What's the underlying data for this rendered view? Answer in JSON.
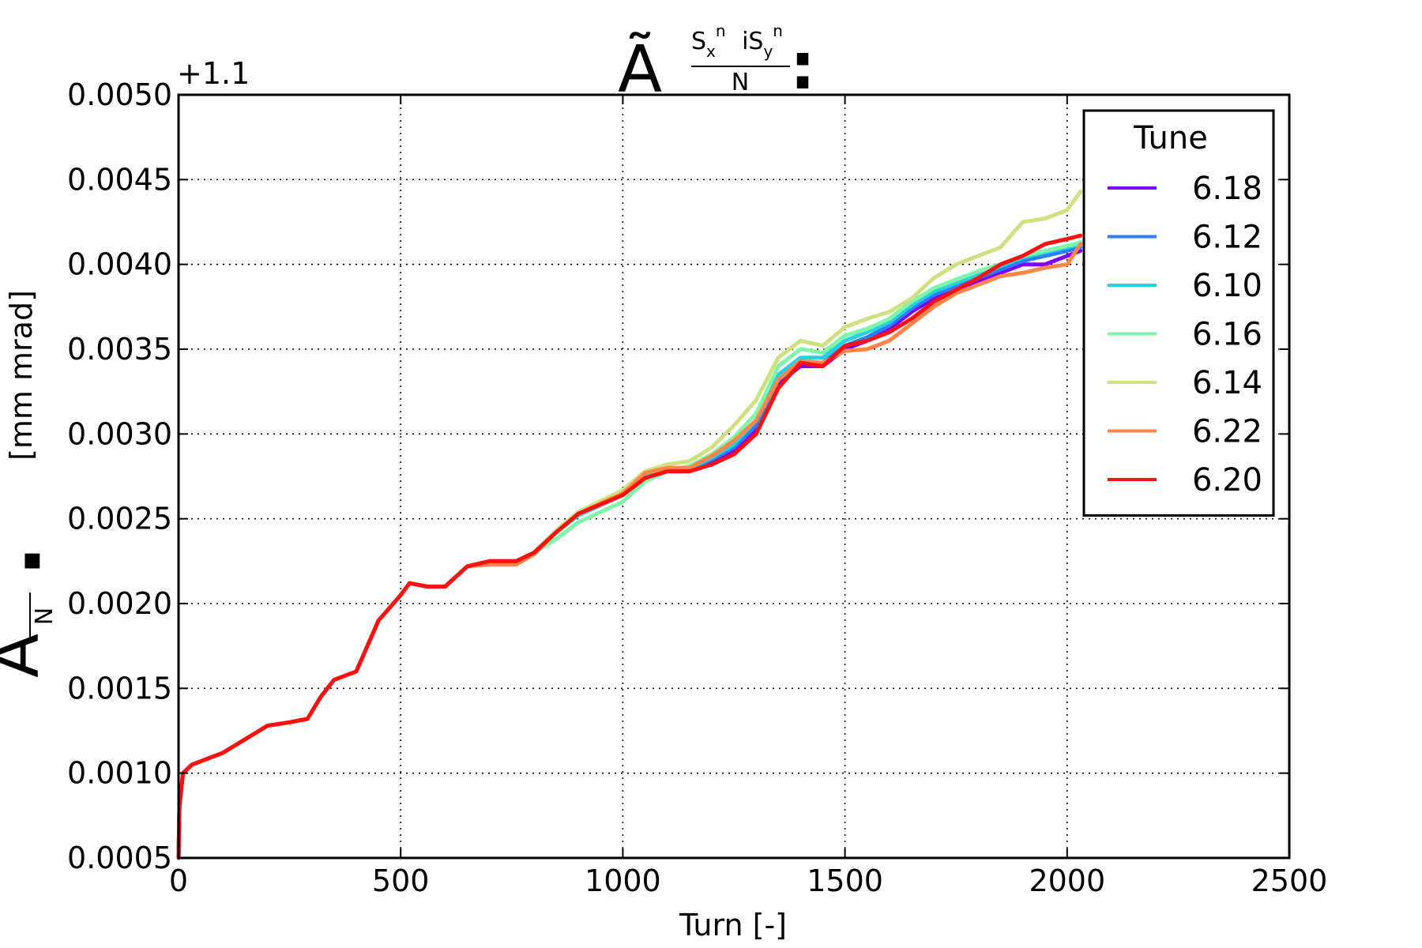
{
  "chart_data": {
    "type": "line",
    "title": {
      "symbol": "Ã",
      "numerator_parts": [
        {
          "text": "S",
          "sub": "x",
          "sup": "n"
        },
        {
          "text": "  iS",
          "sub": "y",
          "sup": "n"
        }
      ],
      "denominator": "N",
      "suffix": ":"
    },
    "ylabel": {
      "symbol": "Ã",
      "fraction_denominator": "N",
      "units": "[mm mrad]"
    },
    "xlabel": "Turn [-]",
    "y_offset_label": "+1.1",
    "xlim": [
      0,
      2500
    ],
    "ylim": [
      0.0005,
      0.005
    ],
    "x_ticks": [
      0,
      500,
      1000,
      1500,
      2000,
      2500
    ],
    "x_tick_labels": [
      "0",
      "500",
      "1000",
      "1500",
      "2000",
      "2500"
    ],
    "y_ticks": [
      0.0005,
      0.001,
      0.0015,
      0.002,
      0.0025,
      0.003,
      0.0035,
      0.004,
      0.0045,
      0.005
    ],
    "y_tick_labels": [
      "0.0005",
      "0.0010",
      "0.0015",
      "0.0020",
      "0.0025",
      "0.0030",
      "0.0035",
      "0.0040",
      "0.0045",
      "0.0050"
    ],
    "grid": true,
    "legend": {
      "title": "Tune",
      "placement": "top-right"
    },
    "series": [
      {
        "name": "6.18",
        "color": "#8000ff",
        "x": [
          0,
          2,
          10,
          30,
          100,
          150,
          200,
          250,
          290,
          320,
          350,
          400,
          450,
          500,
          520,
          560,
          600,
          650,
          700,
          760,
          800,
          850,
          900,
          1000,
          1050,
          1100,
          1150,
          1200,
          1250,
          1300,
          1350,
          1400,
          1450,
          1500,
          1550,
          1600,
          1650,
          1700,
          1750,
          1800,
          1850,
          1900,
          1950,
          2000,
          2030
        ],
        "y": [
          0.0005,
          0.0008,
          0.001,
          0.00105,
          0.00112,
          0.0012,
          0.00128,
          0.0013,
          0.00132,
          0.00145,
          0.00155,
          0.0016,
          0.0019,
          0.00205,
          0.00212,
          0.0021,
          0.0021,
          0.00222,
          0.00225,
          0.00225,
          0.0023,
          0.00242,
          0.00253,
          0.00265,
          0.00275,
          0.00278,
          0.00278,
          0.00283,
          0.0029,
          0.00302,
          0.0033,
          0.0034,
          0.0034,
          0.0035,
          0.00355,
          0.00362,
          0.00372,
          0.0038,
          0.00385,
          0.0039,
          0.00395,
          0.004,
          0.004,
          0.00405,
          0.00408
        ]
      },
      {
        "name": "6.12",
        "color": "#2c7ef7",
        "x": [
          0,
          2,
          10,
          30,
          100,
          150,
          200,
          250,
          290,
          320,
          350,
          400,
          450,
          500,
          520,
          560,
          600,
          650,
          700,
          760,
          800,
          850,
          900,
          1000,
          1050,
          1100,
          1150,
          1200,
          1250,
          1300,
          1350,
          1400,
          1450,
          1500,
          1550,
          1600,
          1650,
          1700,
          1750,
          1800,
          1850,
          1900,
          1950,
          2000,
          2030
        ],
        "y": [
          0.0005,
          0.0008,
          0.001,
          0.00105,
          0.00112,
          0.0012,
          0.00128,
          0.0013,
          0.00132,
          0.00145,
          0.00155,
          0.0016,
          0.0019,
          0.00205,
          0.00212,
          0.0021,
          0.0021,
          0.00222,
          0.00225,
          0.00225,
          0.0023,
          0.00243,
          0.00254,
          0.00266,
          0.00276,
          0.00279,
          0.00279,
          0.00285,
          0.00292,
          0.00305,
          0.00332,
          0.00342,
          0.00342,
          0.00352,
          0.00357,
          0.00364,
          0.00374,
          0.00382,
          0.00387,
          0.00392,
          0.00397,
          0.00402,
          0.00405,
          0.00408,
          0.0041
        ]
      },
      {
        "name": "6.10",
        "color": "#25d0e0",
        "x": [
          0,
          2,
          10,
          30,
          100,
          150,
          200,
          250,
          290,
          320,
          350,
          400,
          450,
          500,
          520,
          560,
          600,
          650,
          700,
          760,
          800,
          850,
          900,
          1000,
          1050,
          1100,
          1150,
          1200,
          1250,
          1300,
          1350,
          1400,
          1450,
          1500,
          1550,
          1600,
          1650,
          1700,
          1750,
          1800,
          1850,
          1900,
          1950,
          2000,
          2030
        ],
        "y": [
          0.0005,
          0.0008,
          0.001,
          0.00105,
          0.00112,
          0.0012,
          0.00128,
          0.0013,
          0.00132,
          0.00145,
          0.00155,
          0.0016,
          0.0019,
          0.00205,
          0.00212,
          0.0021,
          0.0021,
          0.00222,
          0.00225,
          0.00225,
          0.0023,
          0.00242,
          0.00252,
          0.00264,
          0.00275,
          0.00279,
          0.0028,
          0.00286,
          0.00294,
          0.00308,
          0.00335,
          0.00345,
          0.00345,
          0.00355,
          0.0036,
          0.00366,
          0.00376,
          0.00384,
          0.00389,
          0.00394,
          0.00399,
          0.00404,
          0.00407,
          0.0041,
          0.00412
        ]
      },
      {
        "name": "6.16",
        "color": "#7ff5a8",
        "x": [
          0,
          2,
          10,
          30,
          100,
          150,
          200,
          250,
          290,
          320,
          350,
          400,
          450,
          500,
          520,
          560,
          600,
          650,
          700,
          760,
          800,
          850,
          900,
          1000,
          1050,
          1100,
          1150,
          1200,
          1250,
          1300,
          1350,
          1400,
          1450,
          1500,
          1550,
          1600,
          1650,
          1700,
          1750,
          1800,
          1850,
          1900,
          1950,
          2000,
          2030
        ],
        "y": [
          0.0005,
          0.0008,
          0.001,
          0.00105,
          0.00112,
          0.0012,
          0.00128,
          0.0013,
          0.00132,
          0.00145,
          0.00155,
          0.0016,
          0.0019,
          0.00205,
          0.00212,
          0.0021,
          0.0021,
          0.00222,
          0.00225,
          0.00225,
          0.0023,
          0.00238,
          0.00248,
          0.0026,
          0.00272,
          0.00278,
          0.00281,
          0.00288,
          0.00298,
          0.00312,
          0.0034,
          0.0035,
          0.00348,
          0.00358,
          0.00362,
          0.00368,
          0.00378,
          0.00386,
          0.00391,
          0.00396,
          0.004,
          0.00405,
          0.00408,
          0.00411,
          0.00413
        ]
      },
      {
        "name": "6.14",
        "color": "#cfe07f",
        "x": [
          0,
          2,
          10,
          30,
          100,
          150,
          200,
          250,
          290,
          320,
          350,
          400,
          450,
          500,
          520,
          560,
          600,
          650,
          700,
          760,
          800,
          850,
          900,
          1000,
          1050,
          1100,
          1150,
          1200,
          1250,
          1300,
          1350,
          1400,
          1450,
          1500,
          1550,
          1600,
          1650,
          1700,
          1750,
          1800,
          1850,
          1900,
          1950,
          2000,
          2030
        ],
        "y": [
          0.0005,
          0.0008,
          0.001,
          0.00105,
          0.00112,
          0.0012,
          0.00128,
          0.0013,
          0.00132,
          0.00145,
          0.00155,
          0.0016,
          0.0019,
          0.00205,
          0.00212,
          0.0021,
          0.0021,
          0.00222,
          0.00225,
          0.00225,
          0.0023,
          0.00243,
          0.00254,
          0.00267,
          0.00278,
          0.00282,
          0.00284,
          0.00292,
          0.00305,
          0.0032,
          0.00345,
          0.00355,
          0.00352,
          0.00363,
          0.00368,
          0.00372,
          0.0038,
          0.00392,
          0.004,
          0.00405,
          0.0041,
          0.00425,
          0.00427,
          0.00432,
          0.00443
        ]
      },
      {
        "name": "6.22",
        "color": "#ff8447",
        "x": [
          0,
          2,
          10,
          30,
          100,
          150,
          200,
          250,
          290,
          320,
          350,
          400,
          450,
          500,
          520,
          560,
          600,
          650,
          700,
          760,
          800,
          850,
          900,
          1000,
          1050,
          1100,
          1150,
          1200,
          1250,
          1300,
          1350,
          1400,
          1450,
          1500,
          1550,
          1600,
          1650,
          1700,
          1750,
          1800,
          1850,
          1900,
          1950,
          2000,
          2030
        ],
        "y": [
          0.0005,
          0.0008,
          0.001,
          0.00105,
          0.00112,
          0.0012,
          0.00128,
          0.0013,
          0.00132,
          0.00145,
          0.00155,
          0.0016,
          0.0019,
          0.00205,
          0.00212,
          0.0021,
          0.0021,
          0.00222,
          0.00223,
          0.00223,
          0.00229,
          0.00242,
          0.00253,
          0.00265,
          0.00277,
          0.0028,
          0.0028,
          0.00287,
          0.00296,
          0.00308,
          0.00332,
          0.00343,
          0.00342,
          0.00349,
          0.0035,
          0.00355,
          0.00365,
          0.00375,
          0.00383,
          0.00388,
          0.00393,
          0.00395,
          0.00398,
          0.004,
          0.00412
        ]
      },
      {
        "name": "6.20",
        "color": "#ff1010",
        "x": [
          0,
          2,
          10,
          30,
          100,
          150,
          200,
          250,
          290,
          320,
          350,
          400,
          450,
          500,
          520,
          560,
          600,
          650,
          700,
          760,
          800,
          850,
          900,
          1000,
          1050,
          1100,
          1150,
          1200,
          1250,
          1300,
          1350,
          1400,
          1450,
          1500,
          1550,
          1600,
          1650,
          1700,
          1750,
          1800,
          1850,
          1900,
          1950,
          2000,
          2030
        ],
        "y": [
          0.0005,
          0.0008,
          0.001,
          0.00105,
          0.00112,
          0.0012,
          0.00128,
          0.0013,
          0.00132,
          0.00145,
          0.00155,
          0.0016,
          0.0019,
          0.00205,
          0.00212,
          0.0021,
          0.0021,
          0.00222,
          0.00225,
          0.00225,
          0.0023,
          0.00242,
          0.00253,
          0.00264,
          0.00274,
          0.00278,
          0.00278,
          0.00282,
          0.00288,
          0.003,
          0.00327,
          0.00342,
          0.0034,
          0.00352,
          0.00355,
          0.0036,
          0.00368,
          0.00378,
          0.00385,
          0.00392,
          0.004,
          0.00405,
          0.00412,
          0.00415,
          0.00417
        ]
      }
    ]
  }
}
